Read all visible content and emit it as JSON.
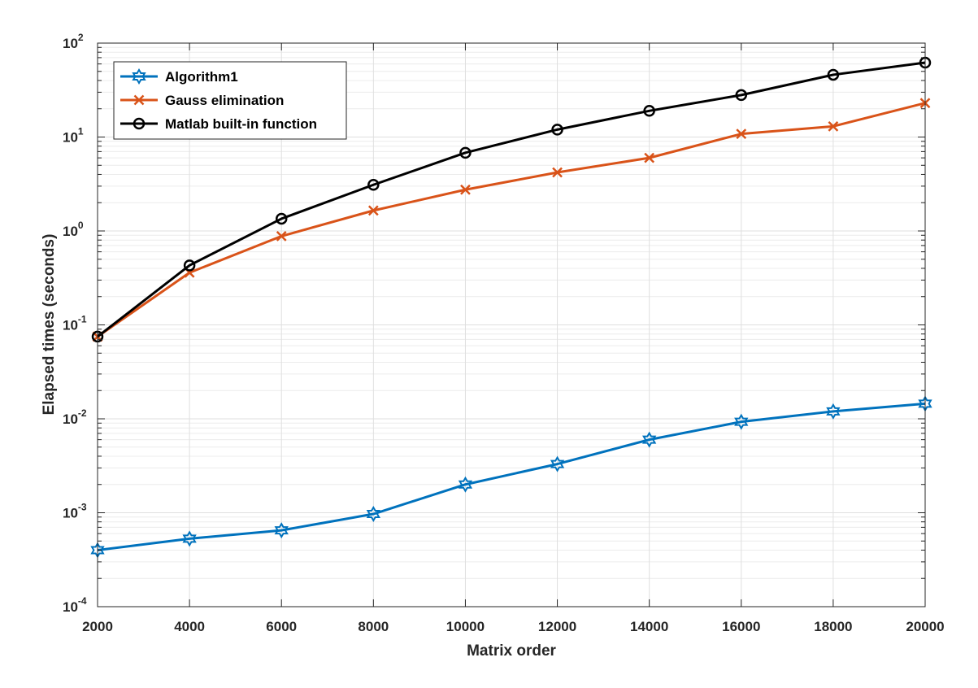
{
  "chart_data": {
    "type": "line",
    "title": "",
    "xlabel": "Matrix order",
    "ylabel": "Elapsed times (seconds)",
    "x": [
      2000,
      4000,
      6000,
      8000,
      10000,
      12000,
      14000,
      16000,
      18000,
      20000
    ],
    "xlim": [
      2000,
      20000
    ],
    "xticks": [
      "2000",
      "4000",
      "6000",
      "8000",
      "10000",
      "12000",
      "14000",
      "16000",
      "18000",
      "20000"
    ],
    "yscale": "log",
    "ylim": [
      0.0001,
      100
    ],
    "yticks": [
      {
        "base": "10",
        "exp": "-4"
      },
      {
        "base": "10",
        "exp": "-3"
      },
      {
        "base": "10",
        "exp": "-2"
      },
      {
        "base": "10",
        "exp": "-1"
      },
      {
        "base": "10",
        "exp": "0"
      },
      {
        "base": "10",
        "exp": "1"
      },
      {
        "base": "10",
        "exp": "2"
      }
    ],
    "grid": true,
    "legend_position": "top-left",
    "series": [
      {
        "name": "Algorithm1",
        "color": "#0072BD",
        "marker": "hexagram",
        "values": [
          0.0004,
          0.00053,
          0.00065,
          0.00097,
          0.002,
          0.0033,
          0.006,
          0.0093,
          0.012,
          0.0145
        ]
      },
      {
        "name": "Gauss elimination",
        "color": "#D95319",
        "marker": "x",
        "values": [
          0.075,
          0.36,
          0.88,
          1.65,
          2.75,
          4.2,
          6.0,
          10.8,
          13.0,
          23.0
        ]
      },
      {
        "name": "Matlab built-in function",
        "color": "#000000",
        "marker": "circle",
        "values": [
          0.075,
          0.43,
          1.35,
          3.1,
          6.8,
          12.0,
          19.0,
          28.0,
          46.0,
          62.0
        ]
      }
    ]
  }
}
